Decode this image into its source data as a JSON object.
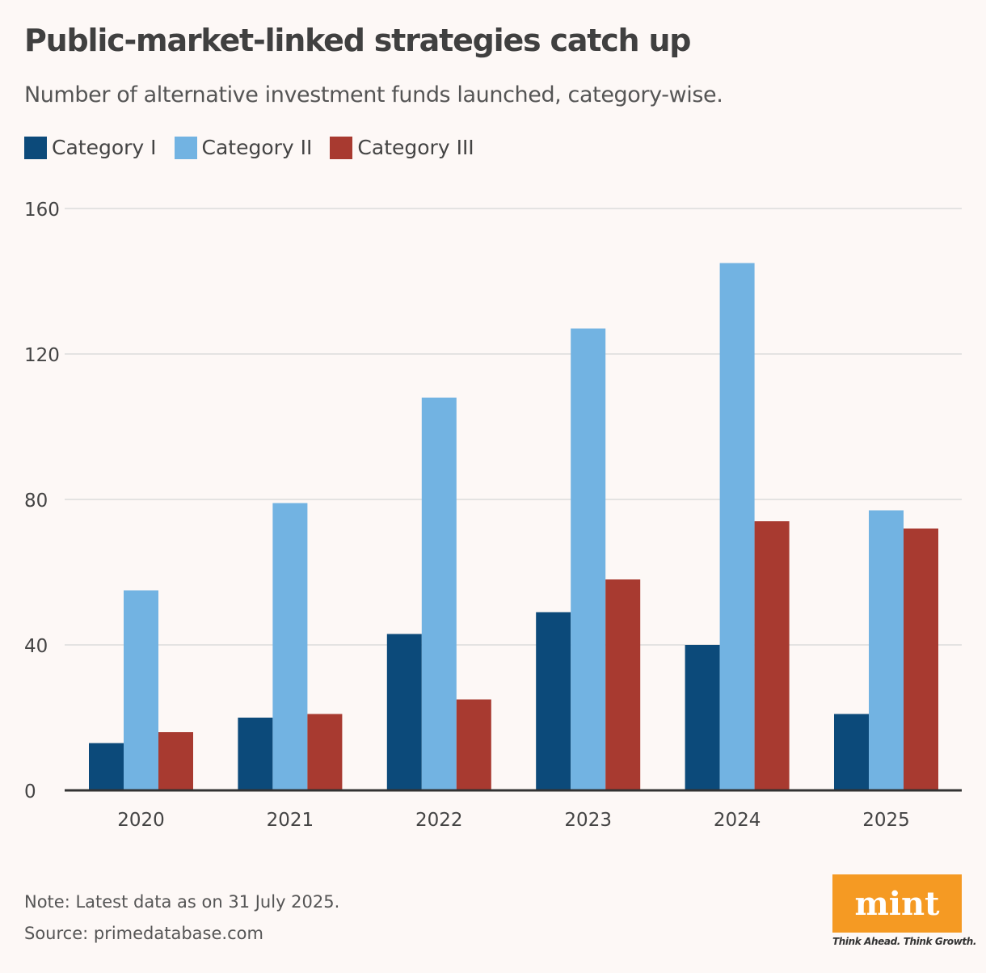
{
  "title": "Public-market-linked strategies catch up",
  "subtitle": "Number of alternative investment funds launched, category-wise.",
  "note": "Note: Latest data as on 31 July 2025.",
  "source": "Source: primedatabase.com",
  "logo": {
    "text": "mint",
    "tagline": "Think Ahead. Think Growth.",
    "color": "#f59a23"
  },
  "chart_data": {
    "type": "bar",
    "categories": [
      "2020",
      "2021",
      "2022",
      "2023",
      "2024",
      "2025"
    ],
    "series": [
      {
        "name": "Category I",
        "color": "#0c4a7a",
        "values": [
          13,
          20,
          43,
          49,
          40,
          21
        ]
      },
      {
        "name": "Category II",
        "color": "#72b3e2",
        "values": [
          55,
          79,
          108,
          127,
          145,
          77
        ]
      },
      {
        "name": "Category III",
        "color": "#a83a30",
        "values": [
          16,
          21,
          25,
          58,
          74,
          72
        ]
      }
    ],
    "yticks": [
      "0",
      "40",
      "80",
      "120",
      "160"
    ],
    "ylim": [
      0,
      160
    ],
    "grid": true,
    "legend_position": "top-left"
  }
}
